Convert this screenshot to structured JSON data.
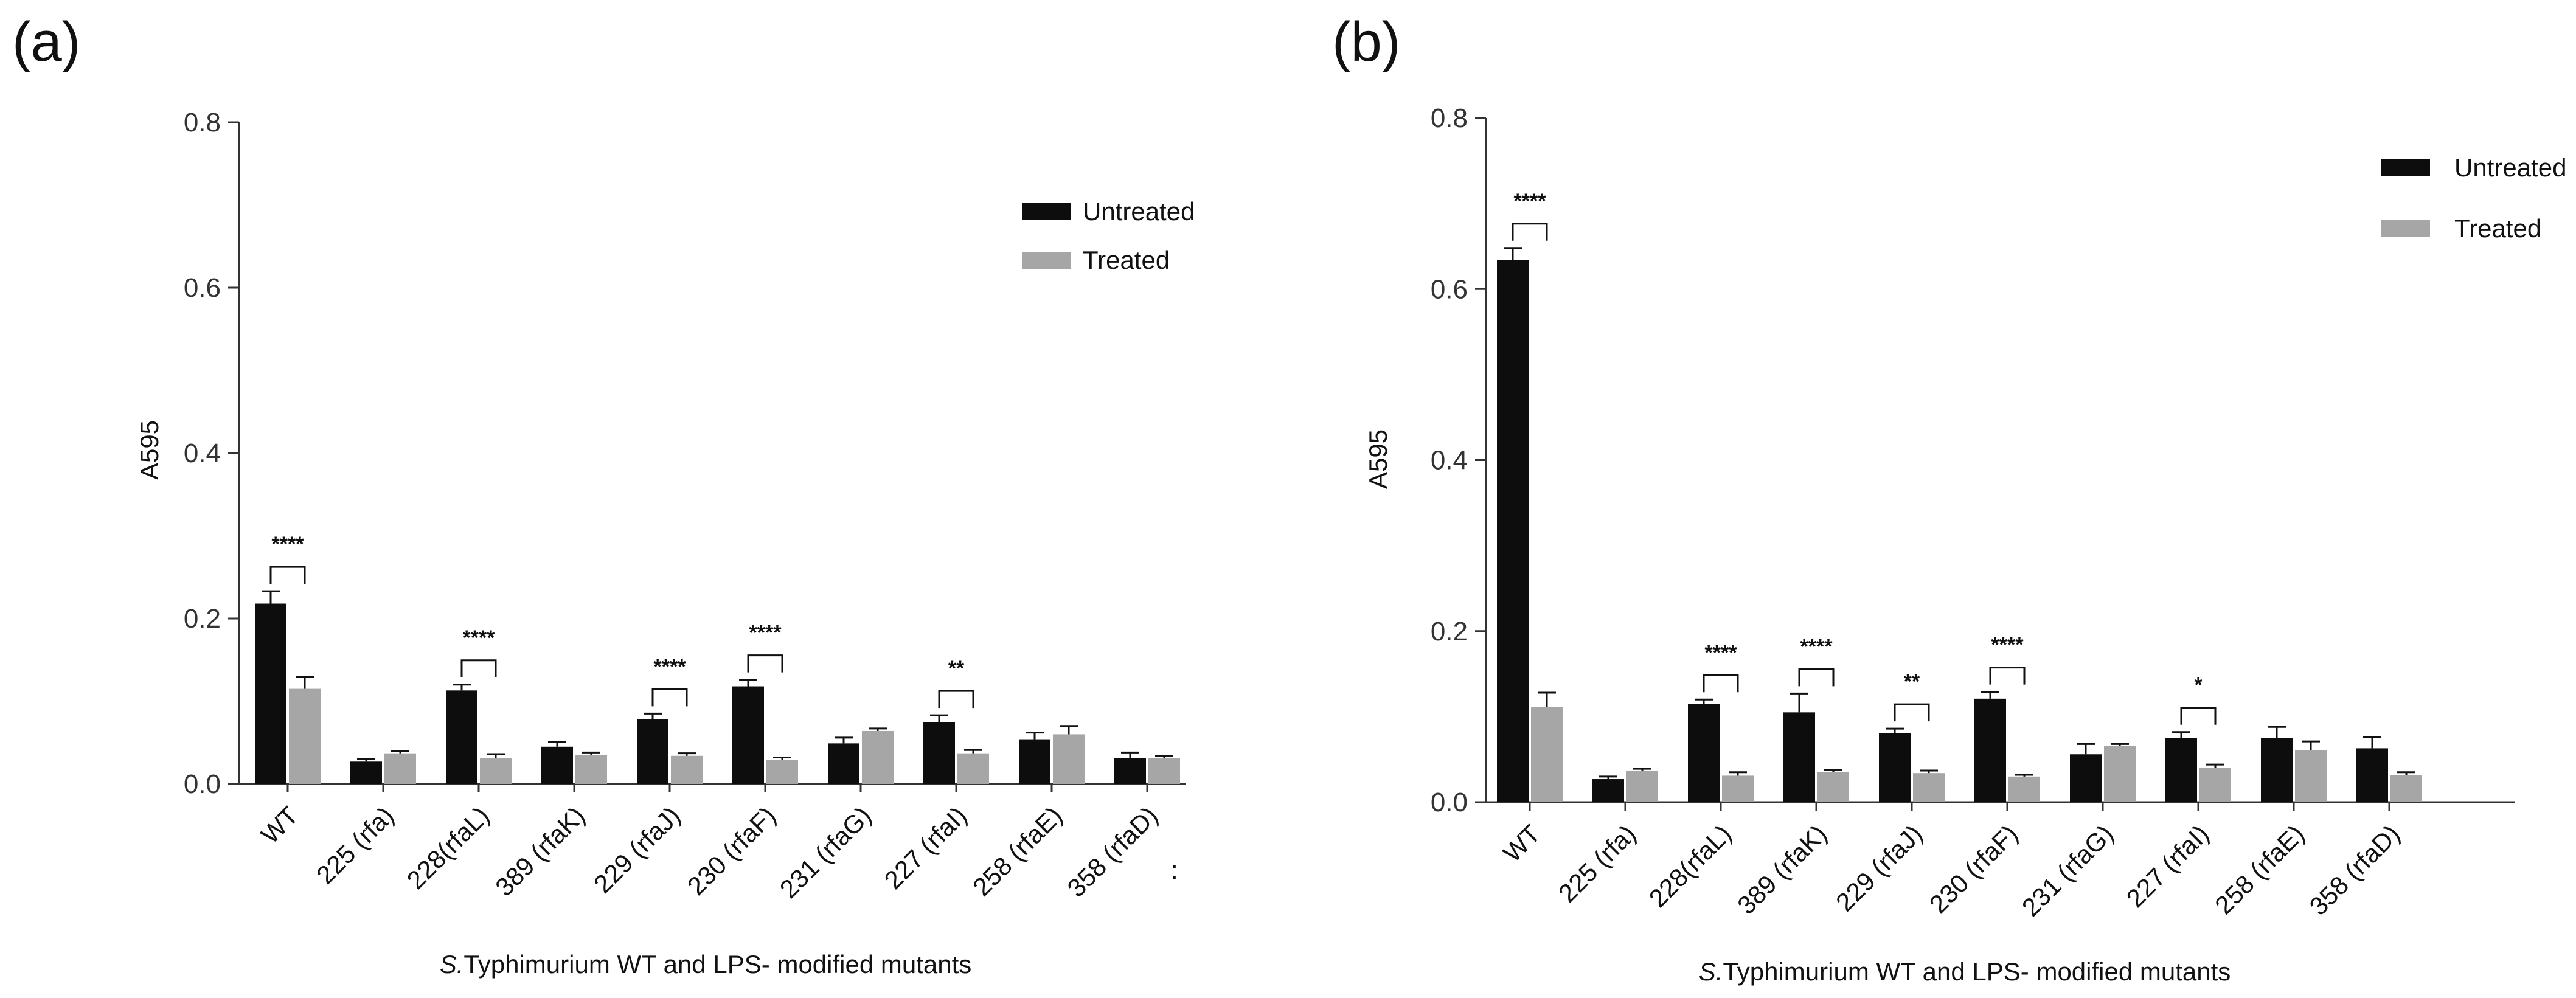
{
  "colors": {
    "untreated": "#0d0d0d",
    "treated": "#a6a6a6",
    "axis": "#333333"
  },
  "chart_data": [
    {
      "type": "bar",
      "panel_label": "(a)",
      "ylabel": "A595",
      "xlabel_italic": "S.",
      "xlabel_rest": "Typhimurium WT and LPS- modified mutants",
      "ylim": [
        0,
        0.8
      ],
      "yticks": [
        "0.0",
        "0.2",
        "0.4",
        "0.6",
        "0.8"
      ],
      "ytick_values": [
        0,
        0.2,
        0.4,
        0.6,
        0.8
      ],
      "categories": [
        "WT",
        "225 (rfa)",
        "228(rfaL)",
        "389 (rfaK)",
        "229 (rfaJ)",
        "230 (rfaF)",
        "231 (rfaG)",
        "227 (rfaI)",
        "258 (rfaE)",
        "358 (rfaD)"
      ],
      "series": [
        {
          "name": "Untreated",
          "values": [
            0.218,
            0.027,
            0.113,
            0.045,
            0.078,
            0.118,
            0.049,
            0.075,
            0.054,
            0.031
          ],
          "errors": [
            0.015,
            0.003,
            0.007,
            0.006,
            0.007,
            0.008,
            0.007,
            0.008,
            0.008,
            0.007
          ]
        },
        {
          "name": "Treated",
          "values": [
            0.115,
            0.037,
            0.031,
            0.035,
            0.034,
            0.029,
            0.064,
            0.037,
            0.06,
            0.031
          ],
          "errors": [
            0.014,
            0.003,
            0.005,
            0.003,
            0.003,
            0.003,
            0.003,
            0.004,
            0.01,
            0.003
          ]
        }
      ],
      "significance": [
        {
          "category": "WT",
          "label": "****"
        },
        {
          "category": "228(rfaL)",
          "label": "****"
        },
        {
          "category": "229 (rfaJ)",
          "label": "****"
        },
        {
          "category": "230 (rfaF)",
          "label": "****"
        },
        {
          "category": "227 (rfaI)",
          "label": "**"
        }
      ],
      "legend": [
        "Untreated",
        "Treated"
      ],
      "stray_mark": ":"
    },
    {
      "type": "bar",
      "panel_label": "(b)",
      "ylabel": "A595",
      "xlabel_italic": "S.",
      "xlabel_rest": "Typhimurium WT and LPS- modified mutants",
      "ylim": [
        0,
        0.8
      ],
      "yticks": [
        "0.0",
        "0.2",
        "0.4",
        "0.6",
        "0.8"
      ],
      "ytick_values": [
        0,
        0.2,
        0.4,
        0.6,
        0.8
      ],
      "categories": [
        "WT",
        "225 (rfa)",
        "228(rfaL)",
        "389 (rfaK)",
        "229 (rfaJ)",
        "230 (rfaF)",
        "231 (rfaG)",
        "227 (rfaI)",
        "258 (rfaE)",
        "358 (rfaD)"
      ],
      "series": [
        {
          "name": "Untreated",
          "values": [
            0.634,
            0.027,
            0.115,
            0.105,
            0.081,
            0.121,
            0.056,
            0.075,
            0.075,
            0.063
          ],
          "errors": [
            0.014,
            0.003,
            0.005,
            0.022,
            0.005,
            0.008,
            0.012,
            0.007,
            0.013,
            0.013
          ]
        },
        {
          "name": "Treated",
          "values": [
            0.111,
            0.037,
            0.031,
            0.035,
            0.034,
            0.03,
            0.066,
            0.04,
            0.061,
            0.032
          ],
          "errors": [
            0.017,
            0.002,
            0.004,
            0.003,
            0.003,
            0.002,
            0.002,
            0.004,
            0.01,
            0.003
          ]
        }
      ],
      "significance": [
        {
          "category": "WT",
          "label": "****"
        },
        {
          "category": "228(rfaL)",
          "label": "****"
        },
        {
          "category": "389 (rfaK)",
          "label": "****"
        },
        {
          "category": "229 (rfaJ)",
          "label": "**"
        },
        {
          "category": "230 (rfaF)",
          "label": "****"
        },
        {
          "category": "227 (rfaI)",
          "label": "*"
        }
      ],
      "legend": [
        "Untreated",
        "Treated"
      ]
    }
  ]
}
